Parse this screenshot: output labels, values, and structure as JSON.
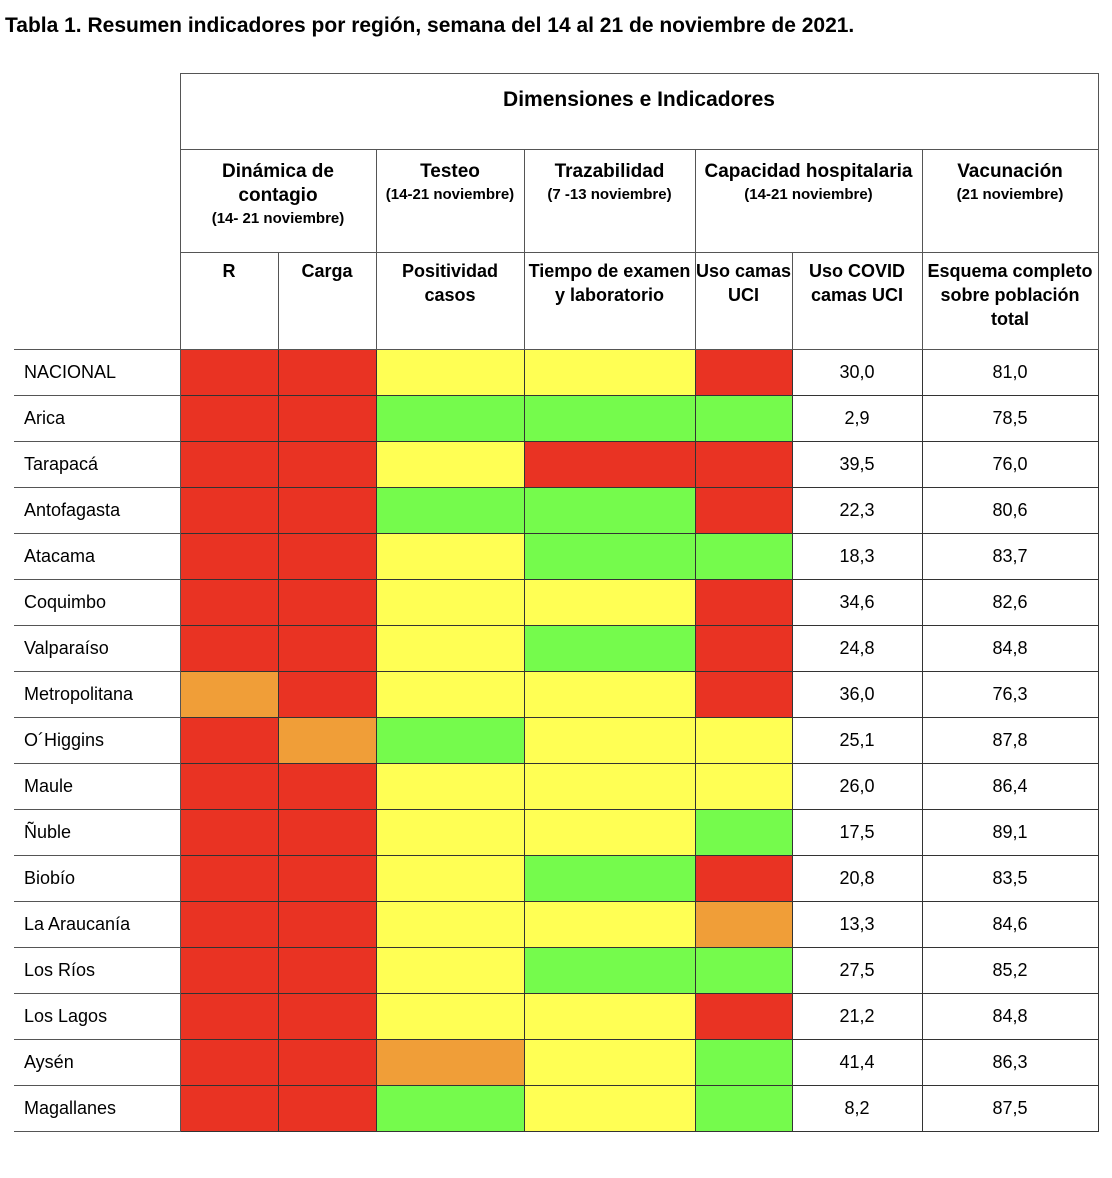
{
  "title": "Tabla 1. Resumen indicadores por región, semana del 14 al 21 de noviembre de 2021.",
  "header": {
    "dimensions_label": "Dimensiones e Indicadores",
    "groups": [
      {
        "title": "Dinámica de contagio",
        "subtitle": "(14- 21 noviembre)"
      },
      {
        "title": "Testeo",
        "subtitle": "(14-21 noviembre)"
      },
      {
        "title": "Trazabilidad",
        "subtitle": "(7 -13 noviembre)"
      },
      {
        "title": "Capacidad hospitalaria",
        "subtitle": "(14-21 noviembre)"
      },
      {
        "title": "Vacunación",
        "subtitle": "(21 noviembre)"
      }
    ],
    "indicators": [
      "R",
      "Carga",
      "Positividad casos",
      "Tiempo de examen y laboratorio",
      "Uso camas UCI",
      "Uso COVID camas UCI",
      "Esquema completo sobre población total"
    ]
  },
  "colors": {
    "red": "#e93323",
    "orange": "#f09e38",
    "yellow": "#ffff54",
    "green": "#75fb4c"
  },
  "rows": [
    {
      "region": "NACIONAL",
      "r": "red",
      "carga": "red",
      "positividad": "yellow",
      "tiempo": "yellow",
      "uso_uci": "red",
      "uso_covid_uci": "30,0",
      "vacunacion": "81,0"
    },
    {
      "region": "Arica",
      "r": "red",
      "carga": "red",
      "positividad": "green",
      "tiempo": "green",
      "uso_uci": "green",
      "uso_covid_uci": "2,9",
      "vacunacion": "78,5"
    },
    {
      "region": "Tarapacá",
      "r": "red",
      "carga": "red",
      "positividad": "yellow",
      "tiempo": "red",
      "uso_uci": "red",
      "uso_covid_uci": "39,5",
      "vacunacion": "76,0"
    },
    {
      "region": "Antofagasta",
      "r": "red",
      "carga": "red",
      "positividad": "green",
      "tiempo": "green",
      "uso_uci": "red",
      "uso_covid_uci": "22,3",
      "vacunacion": "80,6"
    },
    {
      "region": "Atacama",
      "r": "red",
      "carga": "red",
      "positividad": "yellow",
      "tiempo": "green",
      "uso_uci": "green",
      "uso_covid_uci": "18,3",
      "vacunacion": "83,7"
    },
    {
      "region": "Coquimbo",
      "r": "red",
      "carga": "red",
      "positividad": "yellow",
      "tiempo": "yellow",
      "uso_uci": "red",
      "uso_covid_uci": "34,6",
      "vacunacion": "82,6"
    },
    {
      "region": "Valparaíso",
      "r": "red",
      "carga": "red",
      "positividad": "yellow",
      "tiempo": "green",
      "uso_uci": "red",
      "uso_covid_uci": "24,8",
      "vacunacion": "84,8"
    },
    {
      "region": "Metropolitana",
      "r": "orange",
      "carga": "red",
      "positividad": "yellow",
      "tiempo": "yellow",
      "uso_uci": "red",
      "uso_covid_uci": "36,0",
      "vacunacion": "76,3"
    },
    {
      "region": "O´Higgins",
      "r": "red",
      "carga": "orange",
      "positividad": "green",
      "tiempo": "yellow",
      "uso_uci": "yellow",
      "uso_covid_uci": "25,1",
      "vacunacion": "87,8"
    },
    {
      "region": "Maule",
      "r": "red",
      "carga": "red",
      "positividad": "yellow",
      "tiempo": "yellow",
      "uso_uci": "yellow",
      "uso_covid_uci": "26,0",
      "vacunacion": "86,4"
    },
    {
      "region": "Ñuble",
      "r": "red",
      "carga": "red",
      "positividad": "yellow",
      "tiempo": "yellow",
      "uso_uci": "green",
      "uso_covid_uci": "17,5",
      "vacunacion": "89,1"
    },
    {
      "region": "Biobío",
      "r": "red",
      "carga": "red",
      "positividad": "yellow",
      "tiempo": "green",
      "uso_uci": "red",
      "uso_covid_uci": "20,8",
      "vacunacion": "83,5"
    },
    {
      "region": "La Araucanía",
      "r": "red",
      "carga": "red",
      "positividad": "yellow",
      "tiempo": "yellow",
      "uso_uci": "orange",
      "uso_covid_uci": "13,3",
      "vacunacion": "84,6"
    },
    {
      "region": "Los Ríos",
      "r": "red",
      "carga": "red",
      "positividad": "yellow",
      "tiempo": "green",
      "uso_uci": "green",
      "uso_covid_uci": "27,5",
      "vacunacion": "85,2"
    },
    {
      "region": "Los Lagos",
      "r": "red",
      "carga": "red",
      "positividad": "yellow",
      "tiempo": "yellow",
      "uso_uci": "red",
      "uso_covid_uci": "21,2",
      "vacunacion": "84,8"
    },
    {
      "region": "Aysén",
      "r": "red",
      "carga": "red",
      "positividad": "orange",
      "tiempo": "yellow",
      "uso_uci": "green",
      "uso_covid_uci": "41,4",
      "vacunacion": "86,3"
    },
    {
      "region": "Magallanes",
      "r": "red",
      "carga": "red",
      "positividad": "green",
      "tiempo": "yellow",
      "uso_uci": "green",
      "uso_covid_uci": "8,2",
      "vacunacion": "87,5"
    }
  ]
}
